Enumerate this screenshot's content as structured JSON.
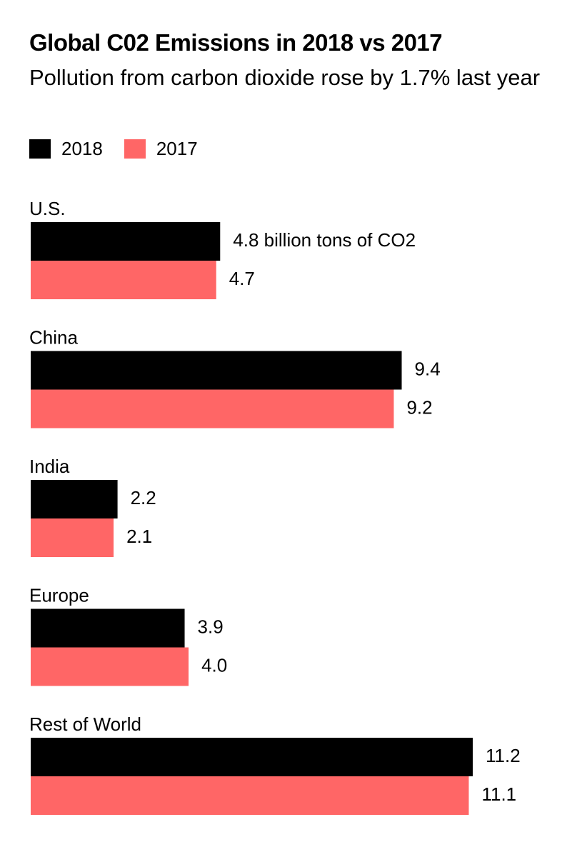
{
  "chart_data": {
    "type": "bar",
    "orientation": "horizontal",
    "title": "Global C02 Emissions in 2018 vs 2017",
    "subtitle": "Pollution from carbon dioxide rose by 1.7% last year",
    "unit_label": "billion tons of CO2",
    "categories": [
      "U.S.",
      "China",
      "India",
      "Europe",
      "Rest of World"
    ],
    "series": [
      {
        "name": "2018",
        "color": "#000000",
        "values": [
          4.8,
          9.4,
          2.2,
          3.9,
          11.2
        ]
      },
      {
        "name": "2017",
        "color": "#ff6666",
        "values": [
          4.7,
          9.2,
          2.1,
          4.0,
          11.1
        ]
      }
    ],
    "value_labels": [
      [
        "4.8 billion tons of CO2",
        "9.4",
        "2.2",
        "3.9",
        "11.2"
      ],
      [
        "4.7",
        "9.2",
        "2.1",
        "4.0",
        "11.1"
      ]
    ],
    "xlim": [
      0,
      11.2
    ],
    "legend_position": "top-left",
    "grid": false
  }
}
